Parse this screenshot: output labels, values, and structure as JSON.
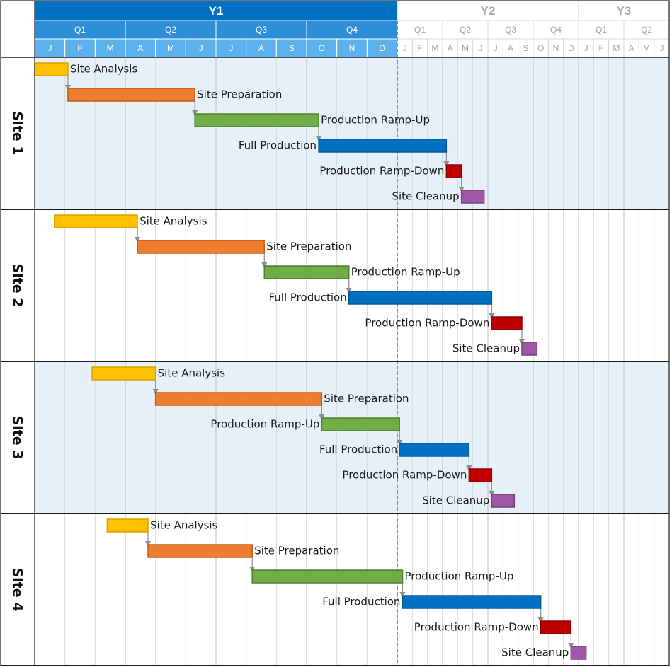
{
  "chart_data": {
    "type": "gantt",
    "timescale": {
      "years": [
        {
          "label": "Y1",
          "start": 0,
          "end": 12,
          "highlight": true
        },
        {
          "label": "Y2",
          "start": 12,
          "end": 24,
          "highlight": false
        },
        {
          "label": "Y3",
          "start": 24,
          "end": 30,
          "highlight": false
        }
      ],
      "quarters": [
        {
          "label": "Q1",
          "start": 0,
          "end": 3,
          "highlight": true
        },
        {
          "label": "Q2",
          "start": 3,
          "end": 6,
          "highlight": true
        },
        {
          "label": "Q3",
          "start": 6,
          "end": 9,
          "highlight": true
        },
        {
          "label": "Q4",
          "start": 9,
          "end": 12,
          "highlight": true
        },
        {
          "label": "Q1",
          "start": 12,
          "end": 15,
          "highlight": false
        },
        {
          "label": "Q2",
          "start": 15,
          "end": 18,
          "highlight": false
        },
        {
          "label": "Q3",
          "start": 18,
          "end": 21,
          "highlight": false
        },
        {
          "label": "Q4",
          "start": 21,
          "end": 24,
          "highlight": false
        },
        {
          "label": "Q1",
          "start": 24,
          "end": 27,
          "highlight": false
        },
        {
          "label": "Q2",
          "start": 27,
          "end": 30,
          "highlight": false
        }
      ],
      "months": [
        "J",
        "F",
        "M",
        "A",
        "M",
        "J",
        "J",
        "A",
        "S",
        "O",
        "N",
        "D",
        "J",
        "F",
        "M",
        "A",
        "M",
        "J",
        "J",
        "A",
        "S",
        "O",
        "N",
        "D",
        "J",
        "F",
        "M",
        "A",
        "M",
        "J"
      ],
      "highlighted_months": 12,
      "today_marker_month": 12
    },
    "phase_colors": {
      "Site Analysis": {
        "fill": "#FFC000",
        "stroke": "#D9A300"
      },
      "Site Preparation": {
        "fill": "#ED7D31",
        "stroke": "#C55A11"
      },
      "Production Ramp-Up": {
        "fill": "#70AD47",
        "stroke": "#4E7F30"
      },
      "Full Production": {
        "fill": "#0070C0",
        "stroke": "#005A9A"
      },
      "Production Ramp-Down": {
        "fill": "#C00000",
        "stroke": "#900000"
      },
      "Site Cleanup": {
        "fill": "#9E58A6",
        "stroke": "#7A3F82"
      }
    },
    "groups": [
      {
        "name": "Site 1",
        "shaded": true,
        "tasks": [
          {
            "name": "Site Analysis",
            "start": 0.0,
            "end": 1.1,
            "label_side": "right"
          },
          {
            "name": "Site Preparation",
            "start": 1.1,
            "end": 5.3,
            "label_side": "right"
          },
          {
            "name": "Production Ramp-Up",
            "start": 5.3,
            "end": 9.4,
            "label_side": "right"
          },
          {
            "name": "Full Production",
            "start": 9.4,
            "end": 15.25,
            "label_side": "left"
          },
          {
            "name": "Production Ramp-Down",
            "start": 15.25,
            "end": 16.25,
            "label_side": "left"
          },
          {
            "name": "Site Cleanup",
            "start": 16.25,
            "end": 17.75,
            "label_side": "left"
          }
        ]
      },
      {
        "name": "Site 2",
        "shaded": false,
        "tasks": [
          {
            "name": "Site Analysis",
            "start": 0.65,
            "end": 3.4,
            "label_side": "right"
          },
          {
            "name": "Site Preparation",
            "start": 3.4,
            "end": 7.6,
            "label_side": "right"
          },
          {
            "name": "Production Ramp-Up",
            "start": 7.6,
            "end": 10.4,
            "label_side": "right"
          },
          {
            "name": "Full Production",
            "start": 10.4,
            "end": 18.25,
            "label_side": "left"
          },
          {
            "name": "Production Ramp-Down",
            "start": 18.25,
            "end": 20.25,
            "label_side": "left"
          },
          {
            "name": "Site Cleanup",
            "start": 20.25,
            "end": 21.25,
            "label_side": "left"
          }
        ]
      },
      {
        "name": "Site 3",
        "shaded": true,
        "tasks": [
          {
            "name": "Site Analysis",
            "start": 1.9,
            "end": 4.0,
            "label_side": "right"
          },
          {
            "name": "Site Preparation",
            "start": 4.0,
            "end": 9.5,
            "label_side": "right"
          },
          {
            "name": "Production Ramp-Up",
            "start": 9.5,
            "end": 12.15,
            "label_side": "left"
          },
          {
            "name": "Full Production",
            "start": 12.15,
            "end": 16.75,
            "label_side": "left"
          },
          {
            "name": "Production Ramp-Down",
            "start": 16.75,
            "end": 18.25,
            "label_side": "left"
          },
          {
            "name": "Site Cleanup",
            "start": 18.25,
            "end": 19.75,
            "label_side": "left"
          }
        ]
      },
      {
        "name": "Site 4",
        "shaded": false,
        "tasks": [
          {
            "name": "Site Analysis",
            "start": 2.4,
            "end": 3.75,
            "label_side": "right"
          },
          {
            "name": "Site Preparation",
            "start": 3.75,
            "end": 7.2,
            "label_side": "right"
          },
          {
            "name": "Production Ramp-Up",
            "start": 7.2,
            "end": 12.35,
            "label_side": "right"
          },
          {
            "name": "Full Production",
            "start": 12.35,
            "end": 21.5,
            "label_side": "left"
          },
          {
            "name": "Production Ramp-Down",
            "start": 21.5,
            "end": 23.5,
            "label_side": "left"
          },
          {
            "name": "Site Cleanup",
            "start": 23.5,
            "end": 24.5,
            "label_side": "left"
          }
        ]
      }
    ]
  }
}
